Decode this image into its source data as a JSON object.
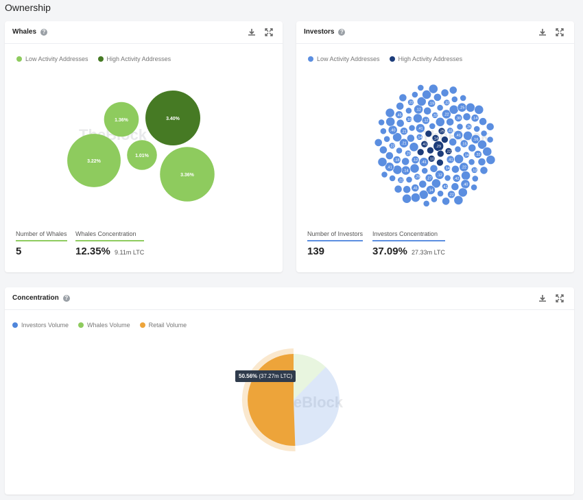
{
  "page": {
    "title": "Ownership"
  },
  "colors": {
    "low_green": "#8ecb5e",
    "high_green": "#467a24",
    "low_blue": "#5b8ee0",
    "high_blue": "#1c3c7a",
    "investors_volume": "#4f86db",
    "whales_volume": "#8ecb5e",
    "retail_volume": "#eda43a"
  },
  "whales": {
    "title": "Whales",
    "legend": [
      "Low Activity Addresses",
      "High Activity Addresses"
    ],
    "stat_count_label": "Number of Whales",
    "stat_count_value": "5",
    "stat_conc_label": "Whales Concentration",
    "stat_conc_value": "12.35%",
    "stat_conc_sub": "9.11m LTC"
  },
  "investors": {
    "title": "Investors",
    "legend": [
      "Low Activity Addresses",
      "High Activity Addresses"
    ],
    "stat_count_label": "Number of Investors",
    "stat_count_value": "139",
    "stat_conc_label": "Investors Concentration",
    "stat_conc_value": "37.09%",
    "stat_conc_sub": "27.33m LTC"
  },
  "concentration": {
    "title": "Concentration",
    "legend": [
      "Investors Volume",
      "Whales Volume",
      "Retail Volume"
    ],
    "tooltip_bold": "50.56%",
    "tooltip_rest": "(37.27m LTC)"
  },
  "watermark": "TheBlock",
  "chart_data": [
    {
      "type": "bubble",
      "title": "Whales",
      "series": [
        {
          "name": "Low Activity Addresses",
          "values": [
            1.36,
            3.22,
            1.01,
            3.36
          ]
        },
        {
          "name": "High Activity Addresses",
          "values": [
            3.4
          ]
        }
      ],
      "labels": [
        "1.36%",
        "3.22%",
        "1.01%",
        "3.36%",
        "3.40%"
      ]
    },
    {
      "type": "bubble",
      "title": "Investors",
      "series": [
        {
          "name": "Low Activity Addresses",
          "count": 127
        },
        {
          "name": "High Activity Addresses",
          "count": 12
        }
      ],
      "visible_labels": [
        ".29",
        ".14",
        ".41",
        ".10",
        ".22",
        ".25",
        ".14",
        ".41",
        ".41",
        ".41",
        ".41",
        ".12",
        ".14",
        ".41",
        ".12",
        ".29",
        ".12",
        ".15",
        ".32",
        ".21",
        ".27",
        ".14",
        ".22",
        ".21",
        ".29",
        ".22",
        ".30",
        ".10",
        ".14",
        ".42",
        ".26",
        ".12",
        ".18",
        ".41",
        ".16",
        ".19",
        ".22",
        ".14",
        ".32",
        ".32",
        ".40",
        ".41",
        ".12",
        ".25",
        ".45",
        ".22",
        ".40",
        ".14",
        ".22",
        ".41",
        ".22"
      ]
    },
    {
      "type": "pie",
      "title": "Concentration",
      "series": [
        {
          "name": "Retail Volume",
          "value": 50.56
        },
        {
          "name": "Whales Volume",
          "value": 12.35
        },
        {
          "name": "Investors Volume",
          "value": 37.09
        }
      ]
    }
  ]
}
